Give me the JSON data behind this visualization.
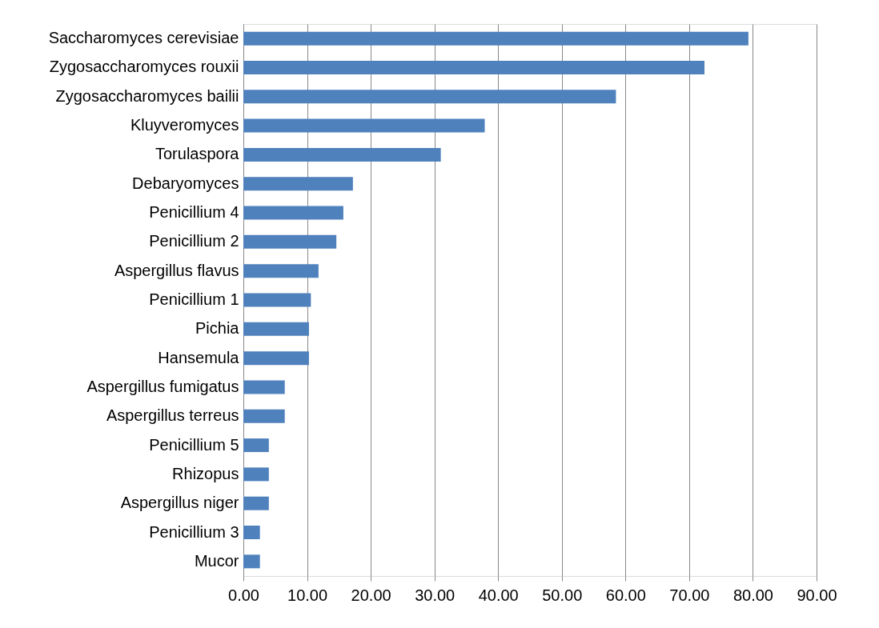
{
  "chart_data": {
    "type": "bar",
    "orientation": "horizontal",
    "categories": [
      "Saccharomyces cerevisiae",
      "Zygosaccharomyces rouxii",
      "Zygosaccharomyces bailii",
      "Kluyveromyces",
      "Torulaspora",
      "Debaryomyces",
      "Penicillium 4",
      "Penicillium 2",
      "Aspergillus flavus",
      "Penicillium 1",
      "Pichia",
      "Hansemula",
      "Aspergillus fumigatus",
      "Aspergillus terreus",
      "Penicillium 5",
      "Rhizopus",
      "Aspergillus niger",
      "Penicillium 3",
      "Mucor"
    ],
    "values": [
      79.3,
      72.4,
      58.5,
      37.9,
      31.0,
      17.2,
      15.7,
      14.6,
      11.8,
      10.6,
      10.3,
      10.3,
      6.5,
      6.5,
      4.0,
      4.0,
      4.0,
      2.6,
      2.6
    ],
    "color": "#4f81bd",
    "xlim": [
      0,
      90
    ],
    "xticks": [
      {
        "value": 0,
        "label": "0.00"
      },
      {
        "value": 10,
        "label": "10.00"
      },
      {
        "value": 20,
        "label": "20.00"
      },
      {
        "value": 30,
        "label": "30.00"
      },
      {
        "value": 40,
        "label": "40.00"
      },
      {
        "value": 50,
        "label": "50.00"
      },
      {
        "value": 60,
        "label": "60.00"
      },
      {
        "value": 70,
        "label": "70.00"
      },
      {
        "value": 80,
        "label": "80.00"
      },
      {
        "value": 90,
        "label": "90.00"
      }
    ],
    "grid": "x"
  }
}
